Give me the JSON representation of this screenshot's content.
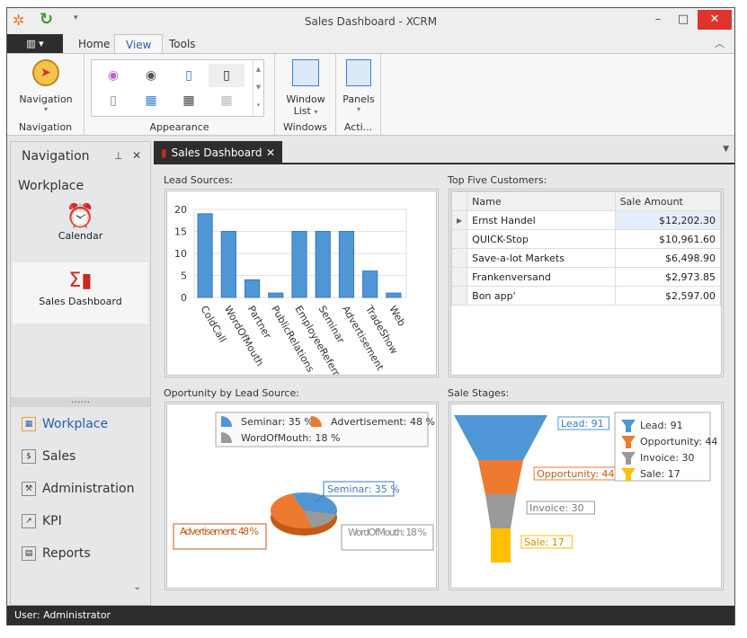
{
  "window": {
    "title": "Sales Dashboard - XCRM",
    "minimize": "–",
    "maximize": "□",
    "close": "✕"
  },
  "ribbon": {
    "tabs": [
      {
        "label": "Home"
      },
      {
        "label": "View"
      },
      {
        "label": "Tools"
      }
    ],
    "selected_tab": "View",
    "groups": [
      {
        "label": "Navigation",
        "button": "Navigation"
      },
      {
        "label": "Appearance"
      },
      {
        "label": "Windows",
        "button": "Window",
        "button2": "List"
      },
      {
        "label": "Acti...",
        "button": "Panels"
      }
    ]
  },
  "nav": {
    "title": "Navigation",
    "section": "Workplace",
    "items": [
      {
        "label": "Calendar",
        "icon": "calendar-clock-icon"
      },
      {
        "label": "Sales Dashboard",
        "icon": "sales-chart-icon"
      }
    ],
    "grip": "......",
    "modules": [
      {
        "label": "Workplace"
      },
      {
        "label": "Sales"
      },
      {
        "label": "Administration"
      },
      {
        "label": "KPI"
      },
      {
        "label": "Reports"
      }
    ]
  },
  "doc": {
    "tab": "Sales Dashboard"
  },
  "panels": {
    "lead": "Lead Sources:",
    "top": "Top Five Customers:",
    "opp": "Oportunity by Lead Source:",
    "stages": "Sale Stages:"
  },
  "customers": {
    "columns": [
      "Name",
      "Sale Amount"
    ],
    "rows": [
      [
        "Ernst Handel",
        "$12,202.30"
      ],
      [
        "QUICK-Stop",
        "$10,961.60"
      ],
      [
        "Save-a-lot Markets",
        "$6,498.90"
      ],
      [
        "Frankenversand",
        "$2,973.85"
      ],
      [
        "Bon app'",
        "$2,597.00"
      ]
    ]
  },
  "chart_data": [
    {
      "type": "bar",
      "title": "Lead Sources:",
      "categories": [
        "ColdCall",
        "WordOfMouth",
        "Partner",
        "PublicRelations",
        "EmployeeReferral",
        "Seminar",
        "Advertisement",
        "TradeShow",
        "Web"
      ],
      "values": [
        19,
        15,
        4,
        1,
        15,
        15,
        15,
        6,
        1
      ],
      "ylim": [
        0,
        20
      ],
      "yticks": [
        0,
        5,
        10,
        15,
        20
      ],
      "grid": true,
      "color": "#4f96d6"
    },
    {
      "type": "pie",
      "title": "Oportunity by Lead Source:",
      "slices": [
        {
          "label": "Seminar: 35 %",
          "value": 35,
          "color": "#4f96d6"
        },
        {
          "label": "Advertisement: 48 %",
          "value": 48,
          "color": "#ee7a30"
        },
        {
          "label": "WordOfMouth: 18 %",
          "value": 18,
          "color": "#999999"
        }
      ],
      "legend": "top",
      "style": "3d"
    },
    {
      "type": "funnel",
      "title": "Sale Stages:",
      "stages": [
        {
          "label": "Lead: 91",
          "value": 91,
          "color": "#4f96d6"
        },
        {
          "label": "Opportunity: 44",
          "value": 44,
          "color": "#ee7a30"
        },
        {
          "label": "Invoice: 30",
          "value": 30,
          "color": "#999999"
        },
        {
          "label": "Sale: 17",
          "value": 17,
          "color": "#ffc000"
        }
      ],
      "legend": "right"
    }
  ],
  "status": {
    "user": "User: Administrator"
  }
}
